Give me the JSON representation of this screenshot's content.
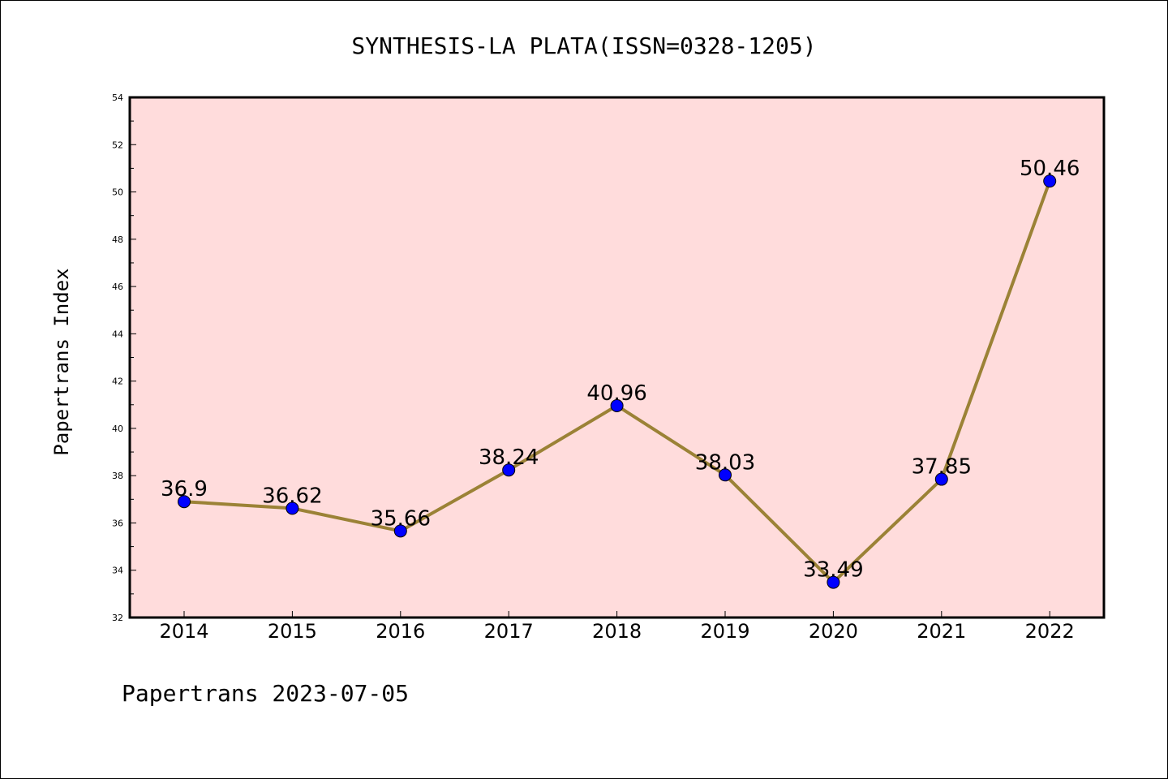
{
  "chart_data": {
    "type": "line",
    "title": "SYNTHESIS-LA PLATA(ISSN=0328-1205)",
    "xlabel": "",
    "ylabel": "Papertrans Index",
    "categories": [
      "2014",
      "2015",
      "2016",
      "2017",
      "2018",
      "2019",
      "2020",
      "2021",
      "2022"
    ],
    "series": [
      {
        "values": [
          36.9,
          36.62,
          35.66,
          38.24,
          40.96,
          38.03,
          33.49,
          37.85,
          50.46
        ],
        "labels": [
          "36.9",
          "36.62",
          "35.66",
          "38.24",
          "40.96",
          "38.03",
          "33.49",
          "37.85",
          "50.46"
        ]
      }
    ],
    "ylim": [
      32,
      54
    ],
    "yticks": [
      "32",
      "34",
      "36",
      "38",
      "40",
      "42",
      "44",
      "46",
      "48",
      "50",
      "52",
      "54"
    ],
    "grid": false,
    "line_color": "#9b8236",
    "marker_color": "#0000ff",
    "background_color": "#ffdcdc"
  },
  "footer": "Papertrans 2023-07-05"
}
